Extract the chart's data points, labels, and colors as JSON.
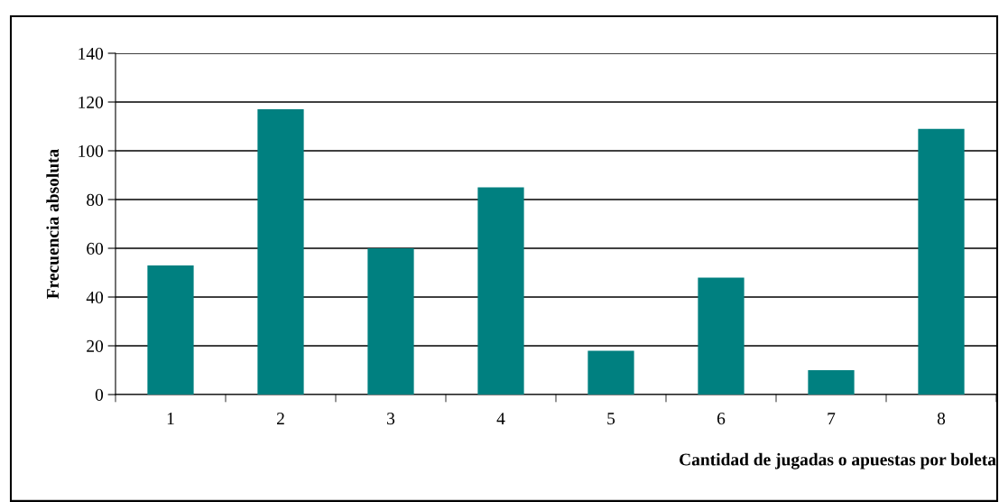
{
  "chart_data": {
    "type": "bar",
    "xlabel": "Cantidad de jugadas o apuestas por boleta",
    "ylabel": "Frecuencia absoluta",
    "categories": [
      "1",
      "2",
      "3",
      "4",
      "5",
      "6",
      "7",
      "8"
    ],
    "values": [
      53,
      117,
      60,
      85,
      18,
      48,
      10,
      109
    ],
    "color": "#008080",
    "ylim": [
      0,
      140
    ],
    "yticks": [
      0,
      20,
      40,
      60,
      80,
      100,
      120,
      140
    ],
    "grid": "y",
    "legend": false
  }
}
